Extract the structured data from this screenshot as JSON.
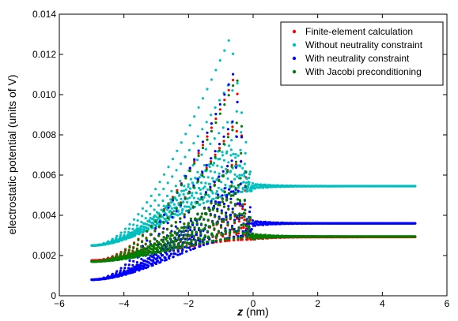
{
  "chart_data": {
    "type": "scatter",
    "xlabel_var": "z",
    "xlabel_unit": " (nm)",
    "ylabel": "electrostatic potential (units of V)",
    "xlim": [
      -6,
      6
    ],
    "ylim": [
      0,
      0.014
    ],
    "x_ticks": [
      -6,
      -4,
      -2,
      0,
      2,
      4,
      6
    ],
    "x_tick_labels": [
      "−6",
      "−4",
      "−2",
      "0",
      "2",
      "4",
      "6"
    ],
    "y_ticks": [
      0,
      0.002,
      0.004,
      0.006,
      0.008,
      0.01,
      0.012,
      0.014
    ],
    "y_tick_labels": [
      "0",
      "0.002",
      "0.004",
      "0.006",
      "0.008",
      "0.010",
      "0.012",
      "0.014"
    ],
    "grid": false,
    "legend_position": "top-right",
    "series": [
      {
        "name": "Finite-element calculation",
        "color": "#ff0000",
        "x_range": [
          -5,
          5
        ],
        "lower_start": 0.00175,
        "lower_end_left_region": 0.0028,
        "peak": {
          "x": -0.55,
          "y": 0.011
        },
        "plateau": 0.00292
      },
      {
        "name": "Without neutrality constraint",
        "color": "#00bfbf",
        "x_range": [
          -5,
          5
        ],
        "lower_start": 0.0025,
        "lower_end_left_region": 0.0052,
        "peak": {
          "x": -0.7,
          "y": 0.0129
        },
        "plateau": 0.00545
      },
      {
        "name": "With neutrality constraint",
        "color": "#0000ff",
        "x_range": [
          -5,
          5
        ],
        "lower_start": 0.0008,
        "lower_end_left_region": 0.003,
        "peak": {
          "x": -0.6,
          "y": 0.0111
        },
        "plateau": 0.0036
      },
      {
        "name": "With Jacobi preconditioning",
        "color": "#008000",
        "x_range": [
          -5,
          5
        ],
        "lower_start": 0.0017,
        "lower_end_left_region": 0.0029,
        "peak": {
          "x": -0.5,
          "y": 0.0109
        },
        "plateau": 0.00295
      }
    ]
  }
}
